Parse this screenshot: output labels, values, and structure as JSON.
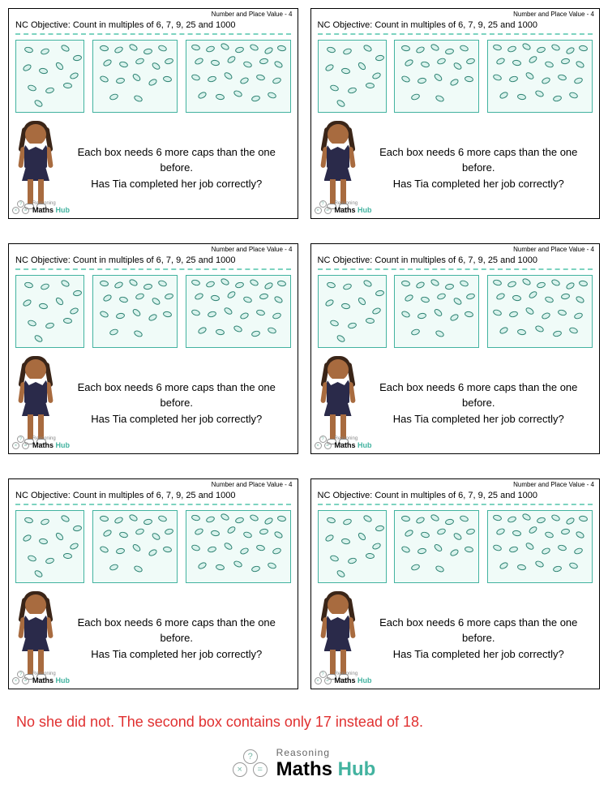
{
  "header_right": "Number and Place Value - 4",
  "objective": "NC Objective: Count in multiples of 6, 7, 9, 25 and 1000",
  "question_line1": "Each box needs 6 more caps than the one before.",
  "question_line2": "Has Tia completed her job correctly?",
  "answer": "No she did not. The second box contains only 17 instead of 18.",
  "logo_reasoning": "Reasoning",
  "logo_maths": "Maths",
  "logo_hub": "Hub",
  "colors": {
    "box_border": "#43b3a0",
    "box_bg": "#f0fbf8",
    "cap_border": "#2a8070",
    "cap_fill": "#d8f2ec",
    "dash": "#7dd3c0",
    "answer_color": "#e03030",
    "hub_color": "#43b3a0"
  },
  "boxes": [
    {
      "count": 12,
      "positions": [
        [
          10,
          8,
          15
        ],
        [
          30,
          10,
          -20
        ],
        [
          55,
          6,
          30
        ],
        [
          70,
          18,
          -10
        ],
        [
          8,
          30,
          -30
        ],
        [
          28,
          34,
          10
        ],
        [
          48,
          28,
          45
        ],
        [
          66,
          40,
          -25
        ],
        [
          14,
          55,
          20
        ],
        [
          36,
          58,
          -15
        ],
        [
          58,
          52,
          5
        ],
        [
          22,
          74,
          35
        ]
      ]
    },
    {
      "count": 17,
      "positions": [
        [
          8,
          6,
          10
        ],
        [
          26,
          8,
          -25
        ],
        [
          44,
          5,
          30
        ],
        [
          62,
          10,
          -10
        ],
        [
          80,
          6,
          20
        ],
        [
          12,
          24,
          -30
        ],
        [
          32,
          26,
          15
        ],
        [
          52,
          22,
          -20
        ],
        [
          72,
          28,
          35
        ],
        [
          88,
          22,
          -15
        ],
        [
          8,
          44,
          25
        ],
        [
          28,
          46,
          -10
        ],
        [
          48,
          42,
          40
        ],
        [
          68,
          48,
          -30
        ],
        [
          86,
          44,
          10
        ],
        [
          20,
          66,
          -20
        ],
        [
          50,
          68,
          25
        ]
      ]
    },
    {
      "count": 24,
      "positions": [
        [
          6,
          5,
          15
        ],
        [
          24,
          7,
          -20
        ],
        [
          42,
          4,
          30
        ],
        [
          60,
          8,
          -15
        ],
        [
          78,
          5,
          25
        ],
        [
          96,
          9,
          -30
        ],
        [
          112,
          6,
          10
        ],
        [
          10,
          22,
          -25
        ],
        [
          30,
          24,
          10
        ],
        [
          50,
          20,
          -35
        ],
        [
          70,
          26,
          20
        ],
        [
          90,
          22,
          -10
        ],
        [
          108,
          26,
          30
        ],
        [
          6,
          42,
          20
        ],
        [
          26,
          44,
          -15
        ],
        [
          46,
          40,
          35
        ],
        [
          66,
          46,
          -25
        ],
        [
          86,
          42,
          15
        ],
        [
          106,
          46,
          -20
        ],
        [
          14,
          64,
          -30
        ],
        [
          36,
          66,
          10
        ],
        [
          58,
          62,
          25
        ],
        [
          80,
          68,
          -15
        ],
        [
          100,
          64,
          20
        ]
      ]
    }
  ]
}
